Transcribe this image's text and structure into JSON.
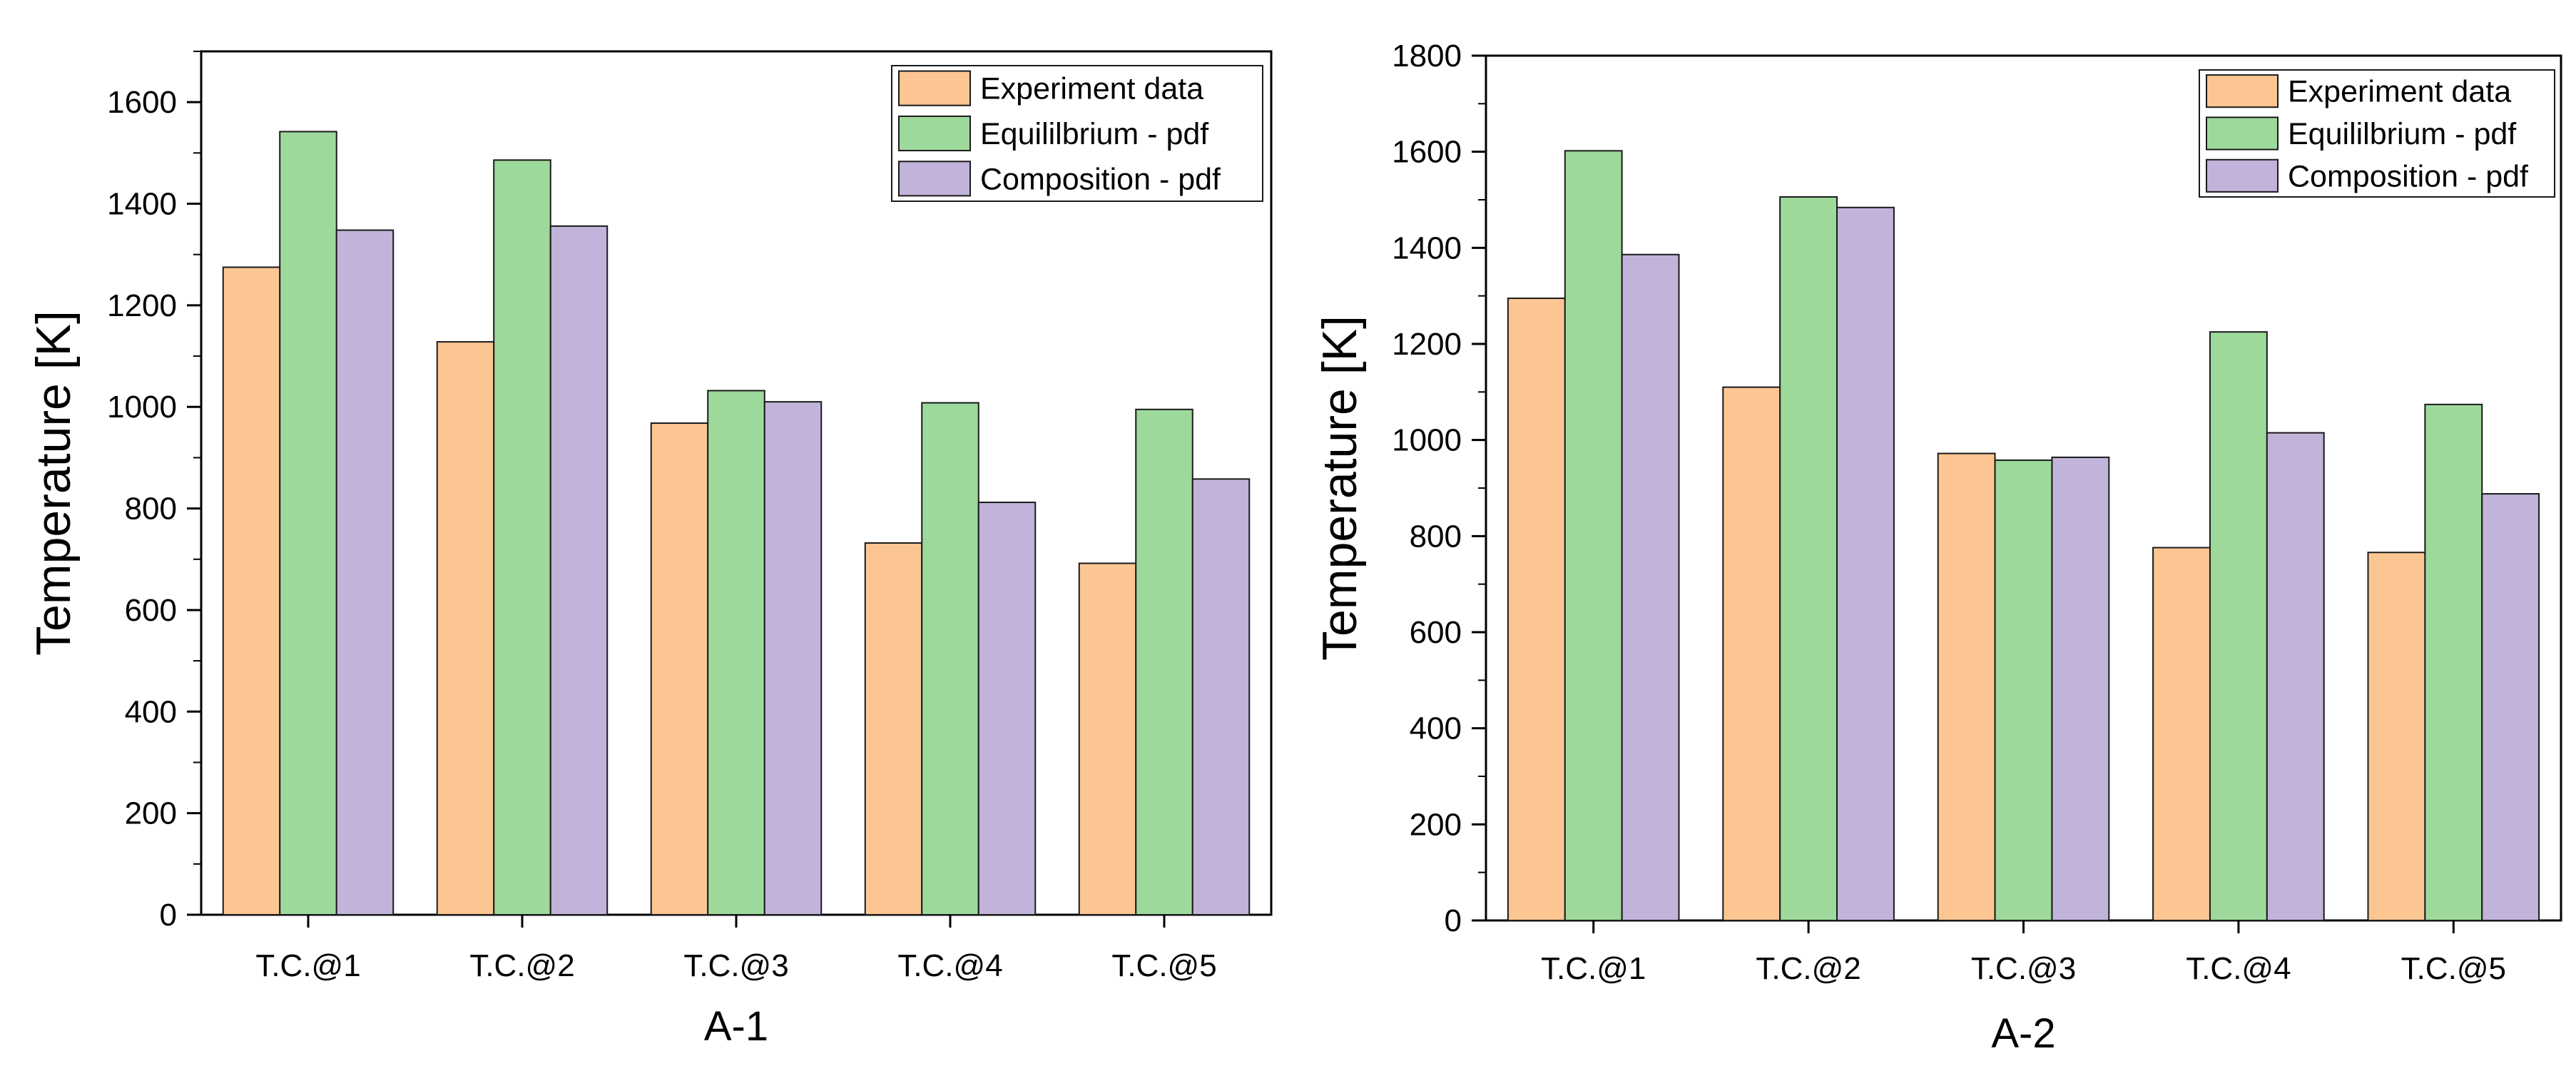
{
  "colors": {
    "experiment": "#fcc693",
    "equilibrium": "#9ed99c",
    "composition": "#c1b3d9",
    "axis": "#000000",
    "background": "#ffffff"
  },
  "chart_data": [
    {
      "type": "bar",
      "title": "",
      "xlabel": "A-1",
      "ylabel": "Temperature  [K]",
      "ylim": [
        0,
        1700
      ],
      "yticks": [
        0,
        200,
        400,
        600,
        800,
        1000,
        1200,
        1400,
        1600
      ],
      "categories": [
        "T.C.@1",
        "T.C.@2",
        "T.C.@3",
        "T.C.@4",
        "T.C.@5"
      ],
      "legend_position": "top-right",
      "series": [
        {
          "name": "Experiment data",
          "values": [
            1275,
            1128,
            968,
            732,
            692
          ]
        },
        {
          "name": "Equililbrium - pdf",
          "values": [
            1542,
            1486,
            1032,
            1008,
            995
          ]
        },
        {
          "name": "Composition - pdf",
          "values": [
            1348,
            1356,
            1010,
            812,
            858
          ]
        }
      ]
    },
    {
      "type": "bar",
      "title": "",
      "xlabel": "A-2",
      "ylabel": "Temperature  [K]",
      "ylim": [
        0,
        1800
      ],
      "yticks": [
        0,
        200,
        400,
        600,
        800,
        1000,
        1200,
        1400,
        1600,
        1800
      ],
      "categories": [
        "T.C.@1",
        "T.C.@2",
        "T.C.@3",
        "T.C.@4",
        "T.C.@5"
      ],
      "legend_position": "top-right",
      "series": [
        {
          "name": "Experiment data",
          "values": [
            1295,
            1110,
            972,
            776,
            766
          ]
        },
        {
          "name": "Equililbrium - pdf",
          "values": [
            1602,
            1506,
            958,
            1225,
            1074
          ]
        },
        {
          "name": "Composition - pdf",
          "values": [
            1386,
            1484,
            964,
            1015,
            888
          ]
        }
      ]
    }
  ]
}
